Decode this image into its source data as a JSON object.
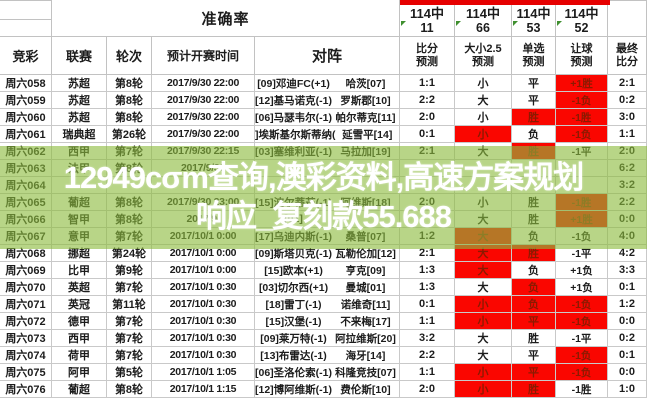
{
  "header": {
    "accuracy_label": "准确率",
    "acc": [
      {
        "total": "114中",
        "hit": "11"
      },
      {
        "total": "114中",
        "hit": "66"
      },
      {
        "total": "114中",
        "hit": "53"
      },
      {
        "total": "114中",
        "hit": "52"
      }
    ],
    "columns": {
      "jingcai": "竞彩",
      "league": "联赛",
      "round": "轮次",
      "time": "预计开赛时间",
      "matchup": "对阵",
      "score_l1": "比分",
      "score_l2": "预测",
      "ou_l1": "大小2.5",
      "ou_l2": "预测",
      "pick_l1": "单选",
      "pick_l2": "预测",
      "handicap_l1": "让球",
      "handicap_l2": "预测",
      "final_l1": "最终",
      "final_l2": "比分"
    }
  },
  "colors": {
    "accent_red": "#e60000",
    "correct_cell_bg": "#fa0600",
    "watermark_green": "#8dbb3e",
    "corner_flag_green": "#3f8f2f"
  },
  "watermark": {
    "line1": "12949cσm查询,澳彩资料,高速方案规划",
    "line2": "响应_复刻款55.688"
  },
  "rows": [
    {
      "id": "周六058",
      "league": "苏超",
      "round": "第8轮",
      "time": "2017/9/30 22:00",
      "home": "[09]邓迪FC(+1)",
      "away": "哈茨[07]",
      "score": "1:1",
      "ou": "小",
      "pick": "平",
      "handicap": "+1胜",
      "final": "2:1",
      "red": [
        "handicap"
      ]
    },
    {
      "id": "周六059",
      "league": "苏超",
      "round": "第8轮",
      "time": "2017/9/30 22:00",
      "home": "[12]基马诺克(-1)",
      "away": "罗斯郡[10]",
      "score": "2:2",
      "ou": "大",
      "pick": "平",
      "handicap": "-1负",
      "final": "0:2",
      "red": [
        "handicap"
      ]
    },
    {
      "id": "周六060",
      "league": "苏超",
      "round": "第8轮",
      "time": "2017/9/30 22:00",
      "home": "[06]马瑟韦尔(-1)",
      "away": "帕尔蒂克[11]",
      "score": "2:0",
      "ou": "小",
      "pick": "胜",
      "handicap": "-1胜",
      "final": "3:0",
      "red": [
        "pick",
        "handicap"
      ]
    },
    {
      "id": "周六061",
      "league": "瑞典超",
      "round": "第26轮",
      "time": "2017/9/30 22:00",
      "home": "]埃斯基尔斯蒂纳(",
      "away": "延雪平[14]",
      "score": "0:1",
      "ou": "小",
      "pick": "负",
      "handicap": "-1负",
      "final": "1:1",
      "red": [
        "ou",
        "handicap"
      ]
    },
    {
      "id": "周六062",
      "league": "西甲",
      "round": "第7轮",
      "time": "2017/9/30 22:15",
      "home": "[03]塞维利亚(-1)",
      "away": "马拉加[19]",
      "score": "2:1",
      "ou": "大",
      "pick": "胜",
      "handicap": "-1平",
      "final": "2:0",
      "red": [
        "pick"
      ]
    },
    {
      "id": "周六063",
      "league": "法甲",
      "round": "第8轮",
      "time": "2017/9/30",
      "home": "",
      "away": "",
      "score": "",
      "ou": "",
      "pick": "",
      "handicap": "",
      "final": "6:2",
      "red": []
    },
    {
      "id": "周六064",
      "league": "",
      "round": "",
      "time": "",
      "home": "",
      "away": "",
      "score": "",
      "ou": "",
      "pick": "",
      "handicap": "",
      "final": "3:2",
      "red": []
    },
    {
      "id": "周六065",
      "league": "葡超",
      "round": "第8轮",
      "time": "2017/9/30 23:00",
      "home": "[15]波尔蒂芒(-1)",
      "away": "阿维斯[18]",
      "score": "2:0",
      "ou": "小",
      "pick": "胜",
      "handicap": "-1胜",
      "final": "2:2",
      "red": [
        "handicap"
      ]
    },
    {
      "id": "周六066",
      "league": "智甲",
      "round": "第8轮",
      "time": "2017/9/",
      "home": "[01]",
      "away": "",
      "score": "",
      "ou": "大",
      "pick": "胜",
      "handicap": "+1胜",
      "final": "0:0",
      "red": [
        "handicap"
      ]
    },
    {
      "id": "周六067",
      "league": "意甲",
      "round": "第7轮",
      "time": "2017/10/1 0:00",
      "home": "[17]乌迪内斯(-1)",
      "away": "桑普[07]",
      "score": "1:2",
      "ou": "大",
      "pick": "负",
      "handicap": "-1负",
      "final": "4:0",
      "red": [
        "ou"
      ]
    },
    {
      "id": "周六068",
      "league": "挪超",
      "round": "第24轮",
      "time": "2017/10/1 0:00",
      "home": "[09]斯塔贝克(-1)",
      "away": "瓦勒伦加[12]",
      "score": "2:1",
      "ou": "大",
      "pick": "胜",
      "handicap": "-1平",
      "final": "4:2",
      "red": [
        "ou",
        "pick"
      ]
    },
    {
      "id": "周六069",
      "league": "比甲",
      "round": "第9轮",
      "time": "2017/10/1 0:00",
      "home": "[15]欧本(+1)",
      "away": "亨克[09]",
      "score": "1:3",
      "ou": "大",
      "pick": "负",
      "handicap": "+1负",
      "final": "3:3",
      "red": [
        "ou"
      ]
    },
    {
      "id": "周六070",
      "league": "英超",
      "round": "第7轮",
      "time": "2017/10/1 0:30",
      "home": "[03]切尔西(+1)",
      "away": "曼城[01]",
      "score": "1:3",
      "ou": "大",
      "pick": "负",
      "handicap": "+1负",
      "final": "0:1",
      "red": [
        "pick"
      ]
    },
    {
      "id": "周六071",
      "league": "英冠",
      "round": "第11轮",
      "time": "2017/10/1 0:30",
      "home": "[18]雷丁(-1)",
      "away": "诺维奇[11]",
      "score": "0:1",
      "ou": "小",
      "pick": "负",
      "handicap": "-1负",
      "final": "1:2",
      "red": [
        "ou",
        "pick",
        "handicap"
      ]
    },
    {
      "id": "周六072",
      "league": "德甲",
      "round": "第7轮",
      "time": "2017/10/1 0:30",
      "home": "[15]汉堡(-1)",
      "away": "不来梅[17]",
      "score": "1:1",
      "ou": "小",
      "pick": "平",
      "handicap": "-1负",
      "final": "0:0",
      "red": [
        "ou",
        "pick",
        "handicap"
      ]
    },
    {
      "id": "周六073",
      "league": "西甲",
      "round": "第7轮",
      "time": "2017/10/1 0:30",
      "home": "[09]莱万特(-1)",
      "away": "阿拉维斯[20]",
      "score": "3:2",
      "ou": "大",
      "pick": "胜",
      "handicap": "-1平",
      "final": "0:2",
      "red": []
    },
    {
      "id": "周六074",
      "league": "荷甲",
      "round": "第7轮",
      "time": "2017/10/1 0:30",
      "home": "[13]布雷达(-1)",
      "away": "海牙[14]",
      "score": "2:2",
      "ou": "大",
      "pick": "平",
      "handicap": "-1负",
      "final": "0:1",
      "red": [
        "handicap"
      ]
    },
    {
      "id": "周六075",
      "league": "阿甲",
      "round": "第5轮",
      "time": "2017/10/1 1:05",
      "home": "[06]圣洛伦索(-1)",
      "away": "科隆竞技[07]",
      "score": "1:1",
      "ou": "小",
      "pick": "平",
      "handicap": "-1负",
      "final": "0:0",
      "red": [
        "ou",
        "pick",
        "handicap"
      ]
    },
    {
      "id": "周六076",
      "league": "葡超",
      "round": "第8轮",
      "time": "2017/10/1 1:15",
      "home": "[12]博阿维斯(-1)",
      "away": "费伦斯[10]",
      "score": "2:0",
      "ou": "小",
      "pick": "胜",
      "handicap": "-1胜",
      "final": "1:0",
      "red": [
        "ou",
        "pick"
      ]
    }
  ]
}
